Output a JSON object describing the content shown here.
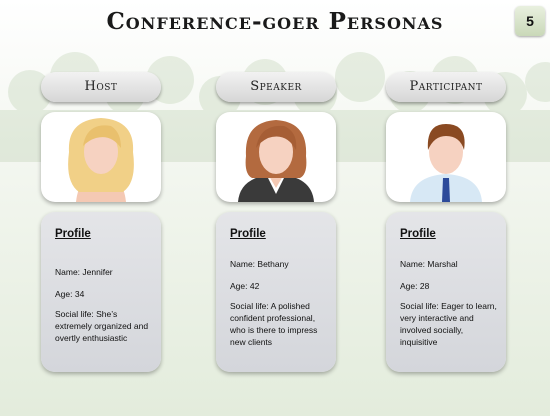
{
  "slide": {
    "title": "Conference-goer Personas",
    "number": "5"
  },
  "personas": [
    {
      "role": "Host",
      "portrait_icon": "blonde-woman-avatar-icon",
      "profile_heading": "Profile",
      "name": "Name: Jennifer",
      "age": "Age: 34",
      "social_life": "Social life: She’s extremely organized and overtly enthusiastic"
    },
    {
      "role": "Speaker",
      "portrait_icon": "businesswoman-avatar-icon",
      "profile_heading": "Profile",
      "name": "Name: Bethany",
      "age": "Age: 42",
      "social_life": "Social life: A polished confident professional, who is there to impress new clients"
    },
    {
      "role": "Participant",
      "portrait_icon": "businessman-avatar-icon",
      "profile_heading": "Profile",
      "name": "Name: Marshal",
      "age": "Age: 28",
      "social_life": "Social life: Eager to learn, very interactive and involved socially, inquisitive"
    }
  ],
  "colors": {
    "background_green": "#e3ecdc",
    "card_gray": "#d9dadf",
    "pill_gray": "#dcdcdc"
  }
}
